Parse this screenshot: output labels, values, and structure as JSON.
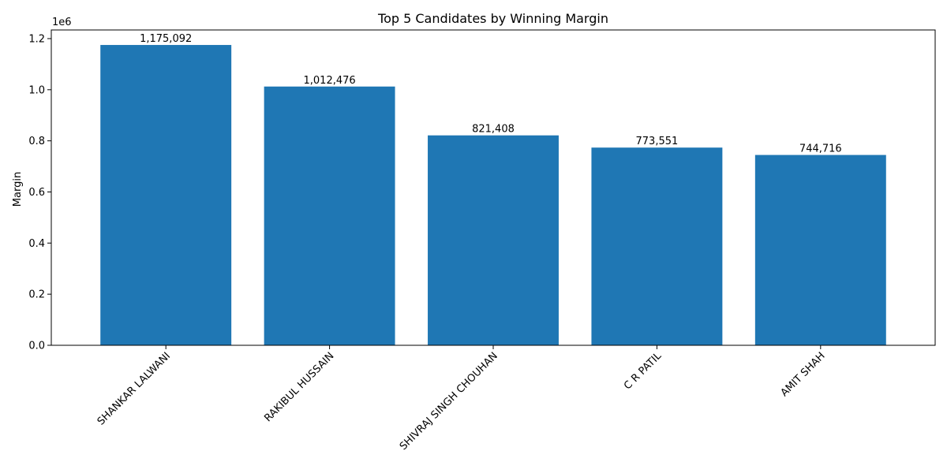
{
  "chart_data": {
    "type": "bar",
    "title": "Top 5 Candidates by Winning Margin",
    "xlabel": "",
    "ylabel": "Margin",
    "y_offset_label": "1e6",
    "categories": [
      "SHANKAR LALWANI",
      "RAKIBUL HUSSAIN",
      "SHIVRAJ SINGH CHOUHAN",
      "C R PATIL",
      "AMIT SHAH"
    ],
    "values": [
      1175092,
      1012476,
      821408,
      773551,
      744716
    ],
    "value_labels": [
      "1,175,092",
      "1,012,476",
      "821,408",
      "773,551",
      "744,716"
    ],
    "ylim": [
      0,
      1233847
    ],
    "yticks": [
      0,
      200000,
      400000,
      600000,
      800000,
      1000000,
      1200000
    ],
    "ytick_labels": [
      "0.0",
      "0.2",
      "0.4",
      "0.6",
      "0.8",
      "1.0",
      "1.2"
    ],
    "bar_color": "#1f77b4",
    "grid": false,
    "legend": "none"
  }
}
